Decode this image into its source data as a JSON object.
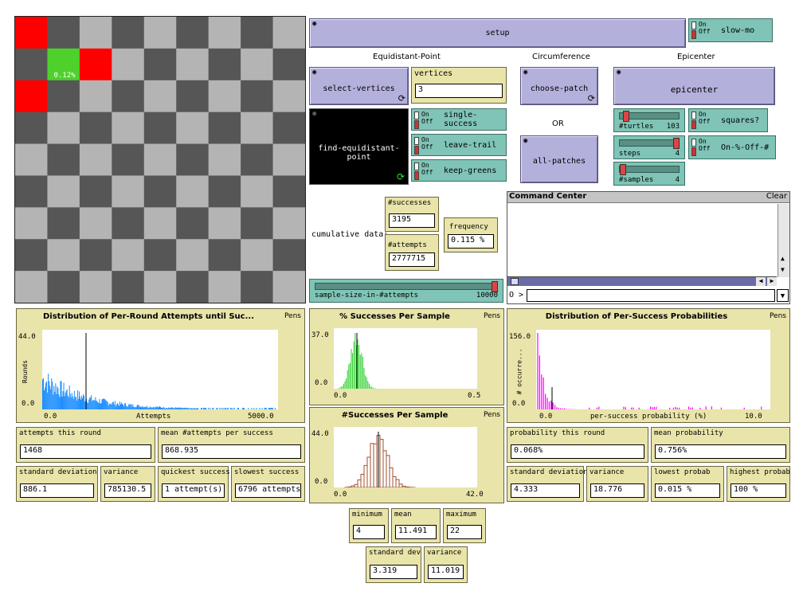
{
  "world": {
    "patch_label": "0.12%",
    "colors": {
      "dark": "#565656",
      "light": "#b4b4b4",
      "red": "#ff0000",
      "green": "#4fd12c"
    }
  },
  "buttons": {
    "setup": "setup",
    "select_vertices": "select-vertices",
    "find_equidistant_point": "find-equidistant-point",
    "choose_patch": "choose-patch",
    "all_patches": "all-patches",
    "epicenter": "epicenter"
  },
  "headers": {
    "equidistant_point": "Equidistant-Point",
    "circumference": "Circumference",
    "epicenter": "Epicenter",
    "or": "OR",
    "cumulative_data": "cumulative data:"
  },
  "switches": {
    "slow_mo": "slow-mo",
    "single_success": "single-success",
    "leave_trail": "leave-trail",
    "keep_greens": "keep-greens",
    "squares": "squares?",
    "on_pct_off_hash": "On-%-Off-#",
    "on_label": "On",
    "off_label": "Off"
  },
  "inputs": {
    "vertices_label": "vertices",
    "vertices_value": "3"
  },
  "sliders": {
    "turtles": {
      "name": "#turtles",
      "value": "103",
      "level": 0.1
    },
    "steps": {
      "name": "steps",
      "value": "4",
      "level": 1.0
    },
    "samples": {
      "name": "#samples",
      "value": "4",
      "level": 0.05
    },
    "sample_size": {
      "name": "sample-size-in-#attempts",
      "value": "10000",
      "level": 1.0
    }
  },
  "monitors": {
    "successes": {
      "label": "#successes",
      "value": "3195"
    },
    "attempts": {
      "label": "#attempts",
      "value": "2777715"
    },
    "frequency": {
      "label": "frequency",
      "value": "0.115 %"
    },
    "attempts_this_round": {
      "label": "attempts this round",
      "value": "1468"
    },
    "mean_attempts": {
      "label": "mean #attempts per success",
      "value": "868.935"
    },
    "std_dev_left": {
      "label": "standard deviation",
      "value": "886.1"
    },
    "variance_left": {
      "label": "variance",
      "value": "785130.5"
    },
    "quickest": {
      "label": "quickest success",
      "value": "1 attempt(s)"
    },
    "slowest": {
      "label": "slowest success",
      "value": "6796 attempts"
    },
    "minimum": {
      "label": "minimum",
      "value": "4"
    },
    "mean": {
      "label": "mean",
      "value": "11.491"
    },
    "maximum": {
      "label": "maximum",
      "value": "22"
    },
    "std_dev_mid": {
      "label": "standard dev",
      "value": "3.319"
    },
    "variance_mid": {
      "label": "variance",
      "value": "11.019"
    },
    "prob_this_round": {
      "label": "probability this round",
      "value": "0.068%"
    },
    "mean_prob": {
      "label": "mean probability",
      "value": "0.756%"
    },
    "std_dev_right": {
      "label": "standard deviation",
      "value": "4.333"
    },
    "variance_right": {
      "label": "variance",
      "value": "18.776"
    },
    "lowest_prob": {
      "label": "lowest probab",
      "value": "0.015 %"
    },
    "highest_prob": {
      "label": "highest probab",
      "value": "100 %"
    }
  },
  "command_center": {
    "title": "Command Center",
    "clear": "Clear",
    "prompt": "O >"
  },
  "plots": {
    "attempts": {
      "title": "Distribution of Per-Round Attempts until Suc...",
      "pens": "Pens",
      "ymax": "44.0",
      "ymin": "0.0",
      "xmin": "0.0",
      "xmax": "5000.0",
      "xlabel": "Attempts",
      "ylabel": "Rounds",
      "color": "#1f8fff"
    },
    "pct_success": {
      "title": "% Successes Per Sample",
      "pens": "Pens",
      "ymax": "37.0",
      "ymin": "0.0",
      "xmin": "0.0",
      "xmax": "0.5",
      "color": "#2bd12b"
    },
    "num_success": {
      "title": "#Successes Per Sample",
      "pens": "Pens",
      "ymax": "44.0",
      "ymin": "0.0",
      "xmin": "0.0",
      "xmax": "42.0",
      "color": "#a0522d"
    },
    "probabilities": {
      "title": "Distribution of Per-Success Probabilities",
      "pens": "Pens",
      "ymax": "156.0",
      "ymin": "0.0",
      "xmin": "0.0",
      "xmax": "10.0",
      "xlabel": "per-success probability (%)",
      "ylabel": "# occurre...",
      "color": "#ff00ff"
    }
  }
}
